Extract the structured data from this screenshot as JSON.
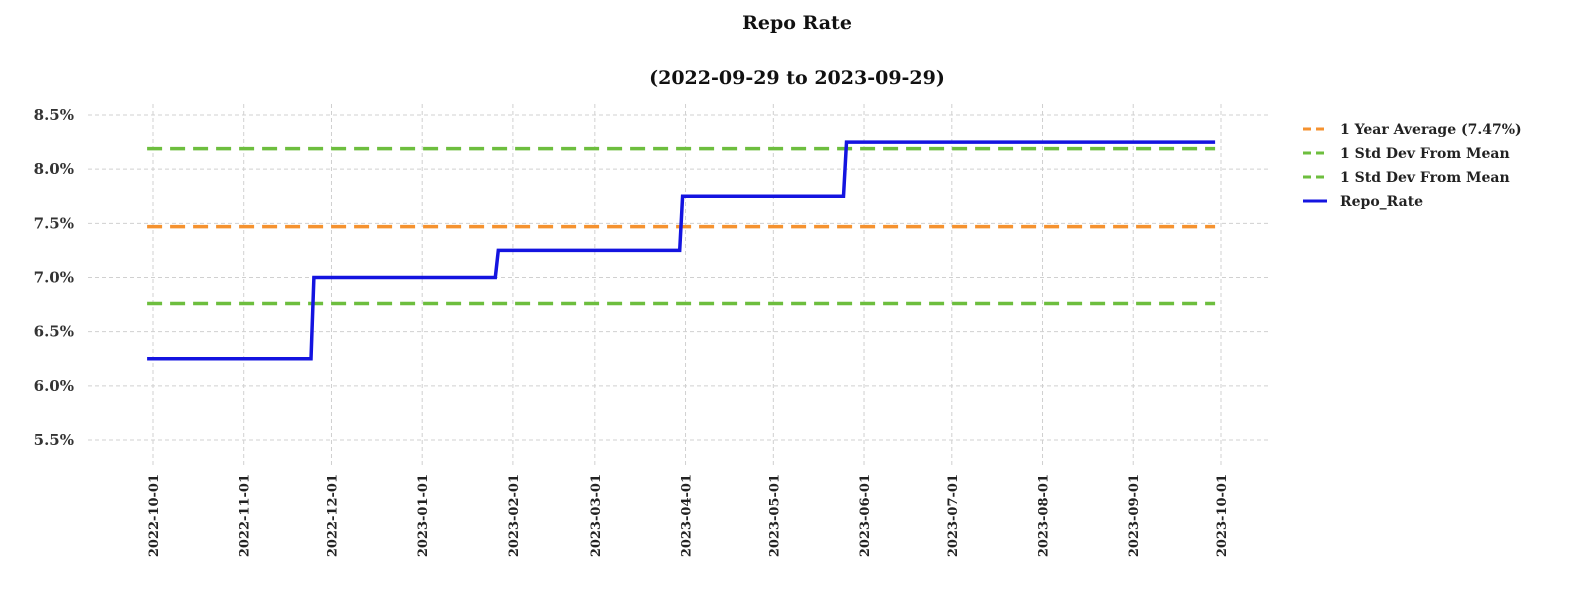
{
  "chart_data": {
    "type": "line",
    "title": "Repo Rate",
    "subtitle": "(2022-09-29 to 2023-09-29)",
    "xlabel": "",
    "ylabel": "",
    "x_range": [
      "2022-09-29",
      "2023-09-29"
    ],
    "ylim": [
      5.3,
      8.55
    ],
    "y_ticks": [
      "5.5%",
      "6.0%",
      "6.5%",
      "7.0%",
      "7.5%",
      "8.0%",
      "8.5%"
    ],
    "y_tick_values": [
      5.5,
      6.0,
      6.5,
      7.0,
      7.5,
      8.0,
      8.5
    ],
    "x_ticks": [
      "2022-10-01",
      "2022-11-01",
      "2022-12-01",
      "2023-01-01",
      "2023-02-01",
      "2023-03-01",
      "2023-04-01",
      "2023-05-01",
      "2023-06-01",
      "2023-07-01",
      "2023-08-01",
      "2023-09-01",
      "2023-10-01"
    ],
    "grid": true,
    "legend_position": "right",
    "series": [
      {
        "name": "1 Year Average (7.47%)",
        "style": "dashed",
        "color": "#f5922f",
        "x": [
          "2022-09-29",
          "2023-09-29"
        ],
        "y": [
          7.47,
          7.47
        ]
      },
      {
        "name": "1 Std Dev From Mean",
        "style": "dashed",
        "color": "#6dbe3e",
        "x": [
          "2022-09-29",
          "2023-09-29"
        ],
        "y": [
          8.19,
          8.19
        ]
      },
      {
        "name": "1 Std Dev From Mean",
        "style": "dashed",
        "color": "#6dbe3e",
        "x": [
          "2022-09-29",
          "2023-09-29"
        ],
        "y": [
          6.76,
          6.76
        ]
      },
      {
        "name": "Repo_Rate",
        "style": "solid",
        "color": "#1414e0",
        "x": [
          "2022-09-29",
          "2022-11-24",
          "2022-11-25",
          "2023-01-26",
          "2023-01-27",
          "2023-03-30",
          "2023-03-31",
          "2023-05-25",
          "2023-05-26",
          "2023-09-29"
        ],
        "y": [
          6.25,
          6.25,
          7.0,
          7.0,
          7.25,
          7.25,
          7.75,
          7.75,
          8.25,
          8.25
        ]
      }
    ]
  }
}
